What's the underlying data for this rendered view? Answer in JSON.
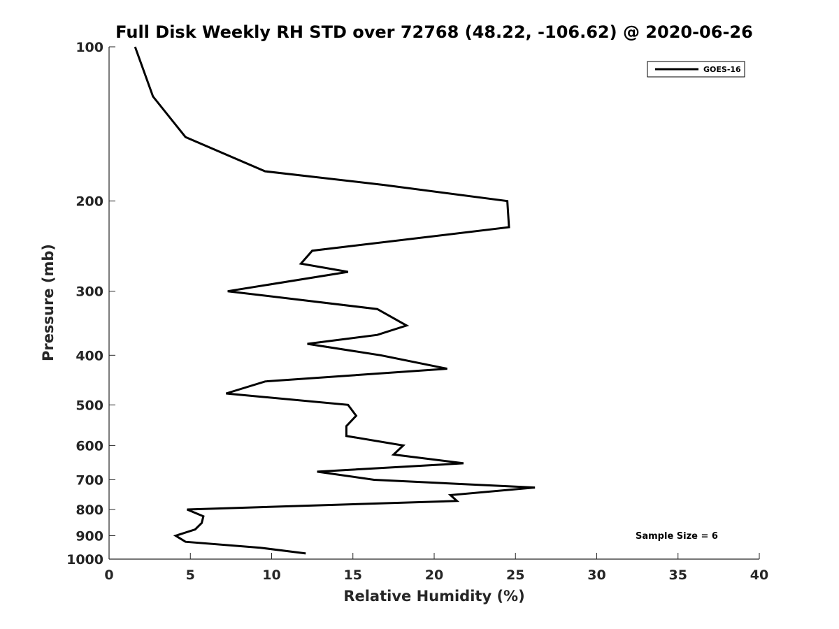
{
  "chart_data": {
    "type": "line",
    "title": "Full Disk Weekly RH STD over 72768 (48.22, -106.62) @ 2020-06-26",
    "xlabel": "Relative Humidity (%)",
    "ylabel": "Pressure (mb)",
    "xlim": [
      0,
      40
    ],
    "ylim": [
      1000,
      100
    ],
    "yscale": "log",
    "grid": false,
    "legend_position": "top-right",
    "x_ticks": [
      0,
      5,
      10,
      15,
      20,
      25,
      30,
      35,
      40
    ],
    "x_tick_labels": [
      "0",
      "5",
      "10",
      "15",
      "20",
      "25",
      "30",
      "35",
      "40"
    ],
    "y_ticks": [
      100,
      200,
      300,
      400,
      500,
      600,
      700,
      800,
      900,
      1000
    ],
    "y_tick_labels": [
      "100",
      "200",
      "300",
      "400",
      "500",
      "600",
      "700",
      "800",
      "900",
      "1000"
    ],
    "series": [
      {
        "name": "GOES-16",
        "color": "#000000",
        "points": [
          {
            "x": 1.6,
            "p": 100
          },
          {
            "x": 2.7,
            "p": 125
          },
          {
            "x": 4.7,
            "p": 150
          },
          {
            "x": 9.6,
            "p": 175
          },
          {
            "x": 16.9,
            "p": 186
          },
          {
            "x": 24.5,
            "p": 200
          },
          {
            "x": 24.6,
            "p": 225
          },
          {
            "x": 12.5,
            "p": 250
          },
          {
            "x": 11.8,
            "p": 265
          },
          {
            "x": 14.7,
            "p": 275
          },
          {
            "x": 7.3,
            "p": 300
          },
          {
            "x": 16.5,
            "p": 325
          },
          {
            "x": 18.3,
            "p": 350
          },
          {
            "x": 16.5,
            "p": 365
          },
          {
            "x": 12.2,
            "p": 380
          },
          {
            "x": 16.7,
            "p": 400
          },
          {
            "x": 20.8,
            "p": 425
          },
          {
            "x": 9.6,
            "p": 450
          },
          {
            "x": 7.2,
            "p": 475
          },
          {
            "x": 14.7,
            "p": 500
          },
          {
            "x": 15.2,
            "p": 525
          },
          {
            "x": 14.6,
            "p": 550
          },
          {
            "x": 14.6,
            "p": 575
          },
          {
            "x": 18.1,
            "p": 600
          },
          {
            "x": 17.5,
            "p": 625
          },
          {
            "x": 21.8,
            "p": 650
          },
          {
            "x": 12.8,
            "p": 675
          },
          {
            "x": 16.3,
            "p": 700
          },
          {
            "x": 26.2,
            "p": 725
          },
          {
            "x": 21.0,
            "p": 750
          },
          {
            "x": 21.4,
            "p": 770
          },
          {
            "x": 4.8,
            "p": 800
          },
          {
            "x": 5.8,
            "p": 825
          },
          {
            "x": 5.7,
            "p": 850
          },
          {
            "x": 5.3,
            "p": 875
          },
          {
            "x": 4.1,
            "p": 900
          },
          {
            "x": 4.7,
            "p": 925
          },
          {
            "x": 9.3,
            "p": 950
          },
          {
            "x": 12.1,
            "p": 975
          }
        ]
      }
    ],
    "annotations": [
      {
        "text": "Sample Size = 6",
        "position": "lower-right"
      }
    ]
  }
}
